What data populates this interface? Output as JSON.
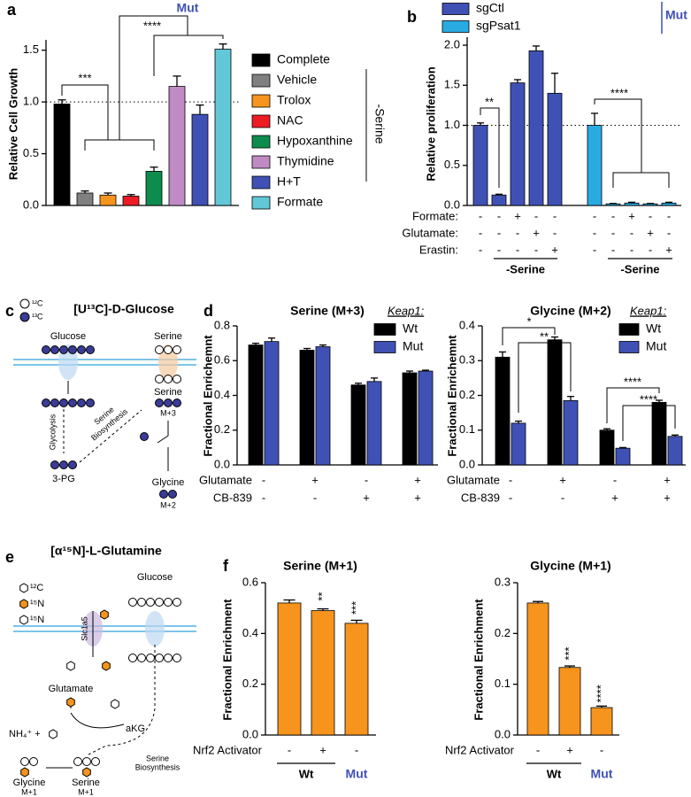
{
  "chart_data": [
    {
      "type": "bar",
      "panel": "a",
      "title": "Mut",
      "ylabel": "Relative Cell Growth",
      "categories": [
        "Complete",
        "Vehicle",
        "Trolox",
        "NAC",
        "Hypoxanthine",
        "Thymidine",
        "H+T",
        "Formate"
      ],
      "values": [
        0.98,
        0.12,
        0.1,
        0.09,
        0.33,
        1.15,
        0.88,
        1.51
      ],
      "errors": [
        0.04,
        0.02,
        0.02,
        0.015,
        0.04,
        0.1,
        0.09,
        0.05
      ],
      "colors": [
        "#000000",
        "#808080",
        "#f7941d",
        "#ed1c24",
        "#0e8c4e",
        "#c08bc4",
        "#3f51b5",
        "#62c8d8"
      ],
      "ylim": [
        0,
        1.6
      ],
      "yticks": [
        {
          "value": 0,
          "label": "0.0"
        },
        0.5,
        {
          "value": 1,
          "label": "1.0"
        },
        1.5
      ],
      "reference_line": 1,
      "legend_group_label": "-Serine",
      "annotations": [
        "***",
        "****"
      ]
    },
    {
      "type": "bar",
      "panel": "b",
      "legend_title": "Mut",
      "ylabel": "Relative proliferation",
      "series": [
        {
          "name": "sgCtl",
          "color": "#3f51b5",
          "values": [
            1.0,
            0.13,
            1.53,
            1.93,
            1.4
          ],
          "errors": [
            0.03,
            0.01,
            0.04,
            0.06,
            0.25
          ]
        },
        {
          "name": "sgPsat1",
          "color": "#29abe2",
          "values": [
            1.0,
            0.02,
            0.03,
            0.02,
            0.03
          ],
          "errors": [
            0.15,
            0.005,
            0.01,
            0.005,
            0.01
          ]
        }
      ],
      "ylim": [
        0,
        2.1
      ],
      "yticks": [
        {
          "value": 0,
          "label": "0.0"
        },
        0.5,
        {
          "value": 1,
          "label": "1.0"
        },
        1.5,
        {
          "value": 2,
          "label": "2.0"
        }
      ],
      "reference_line": 1,
      "conditions": [
        {
          "name": "Formate:",
          "values": [
            "-",
            "-",
            "+",
            "-",
            "-",
            "-",
            "-",
            "+",
            "-",
            "-"
          ]
        },
        {
          "name": "Glutamate:",
          "values": [
            "-",
            "-",
            "-",
            "+",
            "-",
            "-",
            "-",
            "-",
            "+",
            "-"
          ]
        },
        {
          "name": "Erastin:",
          "values": [
            "-",
            "-",
            "-",
            "-",
            "+",
            "-",
            "-",
            "-",
            "-",
            "+"
          ]
        }
      ],
      "group_labels": [
        "-Serine",
        "-Serine"
      ],
      "annotations": [
        "**",
        "****"
      ]
    },
    {
      "type": "bar",
      "panel": "d",
      "title": "Serine (M+3)",
      "ylabel": "Fractional Enrichemnt",
      "legend_title": "Keap1:",
      "series": [
        {
          "name": "Wt",
          "color": "#000000",
          "values": [
            0.69,
            0.66,
            0.46,
            0.53
          ],
          "errors": [
            0.01,
            0.01,
            0.01,
            0.01
          ]
        },
        {
          "name": "Mut",
          "color": "#3f51b5",
          "values": [
            0.71,
            0.68,
            0.48,
            0.54
          ],
          "errors": [
            0.02,
            0.01,
            0.02,
            0.005
          ]
        }
      ],
      "ylim": [
        0,
        0.8
      ],
      "yticks": [
        {
          "value": 0,
          "label": "0.0"
        },
        0.2,
        0.4,
        0.6,
        0.8
      ],
      "conditions": [
        {
          "name": "Glutamate",
          "values": [
            "-",
            "+",
            "-",
            "+"
          ]
        },
        {
          "name": "CB-839",
          "values": [
            "-",
            "-",
            "+",
            "+"
          ]
        }
      ]
    },
    {
      "type": "bar",
      "title": "Glycine (M+2)",
      "ylabel": "Fractional Enrichemnt",
      "legend_title": "Keap1:",
      "series": [
        {
          "name": "Wt",
          "color": "#000000",
          "values": [
            0.31,
            0.36,
            0.1,
            0.18
          ],
          "errors": [
            0.015,
            0.008,
            0.004,
            0.006
          ]
        },
        {
          "name": "Mut",
          "color": "#3f51b5",
          "values": [
            0.12,
            0.185,
            0.048,
            0.082
          ],
          "errors": [
            0.006,
            0.012,
            0.002,
            0.004
          ]
        }
      ],
      "ylim": [
        0,
        0.4
      ],
      "yticks": [
        {
          "value": 0,
          "label": "0.0"
        },
        0.1,
        0.2,
        0.3,
        0.4
      ],
      "conditions": [
        {
          "name": "Glutamate",
          "values": [
            "-",
            "+",
            "-",
            "+"
          ]
        },
        {
          "name": "CB-839",
          "values": [
            "-",
            "-",
            "+",
            "+"
          ]
        }
      ],
      "annotations": [
        "*",
        "**",
        "****",
        "****"
      ]
    },
    {
      "type": "bar",
      "panel": "f",
      "title": "Serine (M+1)",
      "ylabel": "Fractional Enrichment",
      "values": [
        0.52,
        0.49,
        0.44
      ],
      "errors": [
        0.012,
        0.007,
        0.012
      ],
      "color": "#f7941d",
      "bar_annotations": [
        null,
        "**",
        "***"
      ],
      "ylim": [
        0,
        0.6
      ],
      "yticks": [
        {
          "value": 0,
          "label": "0.0"
        },
        0.2,
        0.4,
        0.6
      ],
      "conditions": [
        {
          "name": "Nrf2 Activator",
          "values": [
            "-",
            "+",
            "-"
          ]
        }
      ],
      "group_labels": [
        "Wt",
        "Mut"
      ]
    },
    {
      "type": "bar",
      "title": "Glycine (M+1)",
      "ylabel": "Fractional Enrichment",
      "values": [
        0.26,
        0.133,
        0.054
      ],
      "errors": [
        0.003,
        0.003,
        0.003
      ],
      "color": "#f7941d",
      "bar_annotations": [
        null,
        "***",
        "****"
      ],
      "ylim": [
        0,
        0.3
      ],
      "yticks": [
        {
          "value": 0,
          "label": "0.0"
        },
        0.1,
        0.2,
        0.3
      ],
      "conditions": [
        {
          "name": "Nrf2 Activator",
          "values": [
            "-",
            "+",
            "-"
          ]
        }
      ],
      "group_labels": [
        "Wt",
        "Mut"
      ]
    }
  ],
  "diagram_c": {
    "panel": "c",
    "legend": [
      "¹²C",
      "¹³C"
    ],
    "title": "[U¹³C]-D-Glucose",
    "labels": [
      "Glucose",
      "Serine",
      "Serine",
      "M+3",
      "Glycolysis",
      "Serine",
      "Biosynthesis",
      "3-PG",
      "Glycine",
      "M+2"
    ]
  },
  "diagram_e": {
    "panel": "e",
    "title": "[α¹⁵N]-L-Glutamine",
    "legend": [
      "¹²C",
      "¹⁵N",
      "¹⁵N"
    ],
    "labels": [
      "Glucose",
      "Slc1a5",
      "Glutamate",
      "NH₄⁺ +",
      "aKG",
      "Serine",
      "Biosynthesis",
      "Glycine",
      "M+1",
      "Serine",
      "M+1"
    ]
  }
}
